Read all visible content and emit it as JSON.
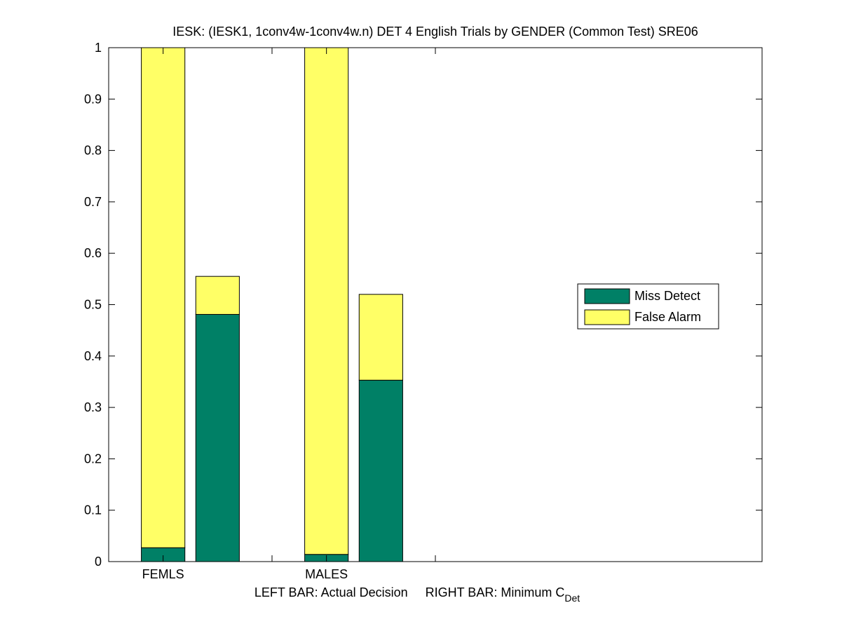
{
  "chart_data": {
    "type": "stacked_bar",
    "title": "IESK: (IESK1, 1conv4w-1conv4w.n) DET 4 English Trials by GENDER (Common Test) SRE06",
    "xlabel": "LEFT BAR: Actual Decision     RIGHT BAR: Minimum C",
    "xlabel_subscript": "Det",
    "x": [
      1,
      2,
      4,
      5
    ],
    "xlim": [
      0,
      12
    ],
    "xticks": [
      {
        "value": 1,
        "label": "FEMLS"
      },
      {
        "value": 3,
        "label": null
      },
      {
        "value": 4,
        "label": "MALES"
      },
      {
        "value": 6,
        "label": null
      }
    ],
    "ylim": [
      0,
      1
    ],
    "yticks": [
      0,
      0.1,
      0.2,
      0.3,
      0.4,
      0.5,
      0.6,
      0.7,
      0.8,
      0.9,
      1
    ],
    "series": [
      {
        "name": "Miss Detect",
        "color": "#008066",
        "values": [
          0.027,
          0.481,
          0.014,
          0.353
        ]
      },
      {
        "name": "False Alarm",
        "color": "#ffff66",
        "values": [
          0.973,
          0.074,
          0.986,
          0.167
        ]
      }
    ],
    "legend": "right"
  }
}
